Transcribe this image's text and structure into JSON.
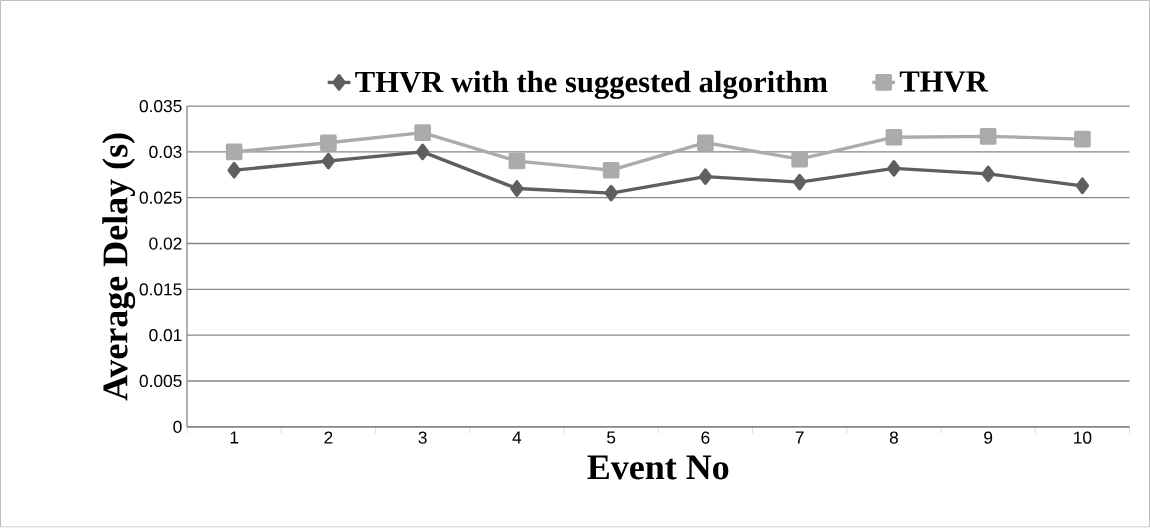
{
  "chart_data": {
    "type": "line",
    "xlabel": "Event No",
    "ylabel": "Average Delay (s)",
    "categories": [
      "1",
      "2",
      "3",
      "4",
      "5",
      "6",
      "7",
      "8",
      "9",
      "10"
    ],
    "series": [
      {
        "name": "THVR with the suggested algorithm",
        "color": "#5f5f5f",
        "marker": "diamond",
        "values": [
          0.028,
          0.029,
          0.03,
          0.026,
          0.0255,
          0.0273,
          0.0267,
          0.0282,
          0.0276,
          0.0263
        ]
      },
      {
        "name": "THVR",
        "color": "#ababab",
        "marker": "square",
        "values": [
          0.03,
          0.031,
          0.0321,
          0.029,
          0.028,
          0.031,
          0.0292,
          0.0316,
          0.0317,
          0.0314
        ]
      }
    ],
    "ylim": [
      0,
      0.035
    ],
    "yticks": [
      0,
      0.005,
      0.01,
      0.015,
      0.02,
      0.025,
      0.03,
      0.035
    ],
    "grid": "y",
    "legend": "top"
  }
}
